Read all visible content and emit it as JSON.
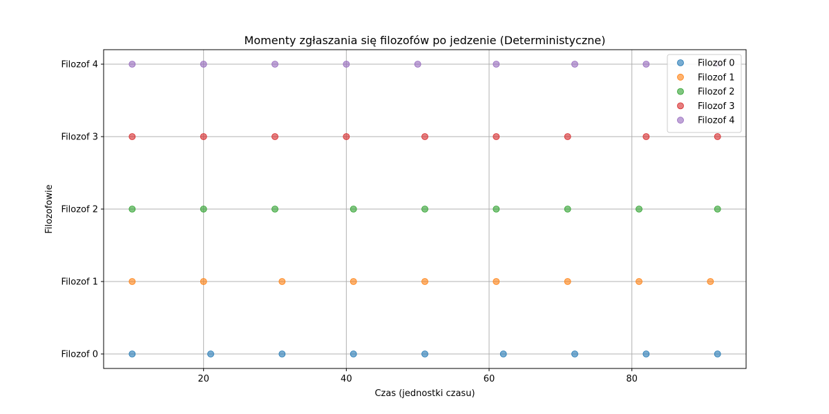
{
  "chart_data": {
    "type": "scatter",
    "title": "Momenty zgłaszania się filozofów po jedzenie (Deterministyczne)",
    "xlabel": "Czas (jednostki czasu)",
    "ylabel": "Filozofowie",
    "xlim": [
      6,
      96
    ],
    "ylim": [
      -0.2,
      4.2
    ],
    "x_ticks": [
      20,
      40,
      60,
      80
    ],
    "y_ticks": [
      0,
      1,
      2,
      3,
      4
    ],
    "y_tick_labels": [
      "Filozof 0",
      "Filozof 1",
      "Filozof 2",
      "Filozof 3",
      "Filozof 4"
    ],
    "grid": true,
    "legend_position": "top-right",
    "series": [
      {
        "name": "Filozof 0",
        "color": "#1f77b4",
        "y": 0,
        "x": [
          10,
          21,
          31,
          41,
          51,
          62,
          72,
          82,
          92
        ]
      },
      {
        "name": "Filozof 1",
        "color": "#ff7f0e",
        "y": 1,
        "x": [
          10,
          20,
          31,
          41,
          51,
          61,
          71,
          81,
          91
        ]
      },
      {
        "name": "Filozof 2",
        "color": "#2ca02c",
        "y": 2,
        "x": [
          10,
          20,
          30,
          41,
          51,
          61,
          71,
          81,
          92
        ]
      },
      {
        "name": "Filozof 3",
        "color": "#d62728",
        "y": 3,
        "x": [
          10,
          20,
          30,
          40,
          51,
          61,
          71,
          82,
          92
        ]
      },
      {
        "name": "Filozof 4",
        "color": "#9467bd",
        "y": 4,
        "x": [
          10,
          20,
          30,
          40,
          50,
          61,
          72,
          82,
          92
        ]
      }
    ]
  }
}
